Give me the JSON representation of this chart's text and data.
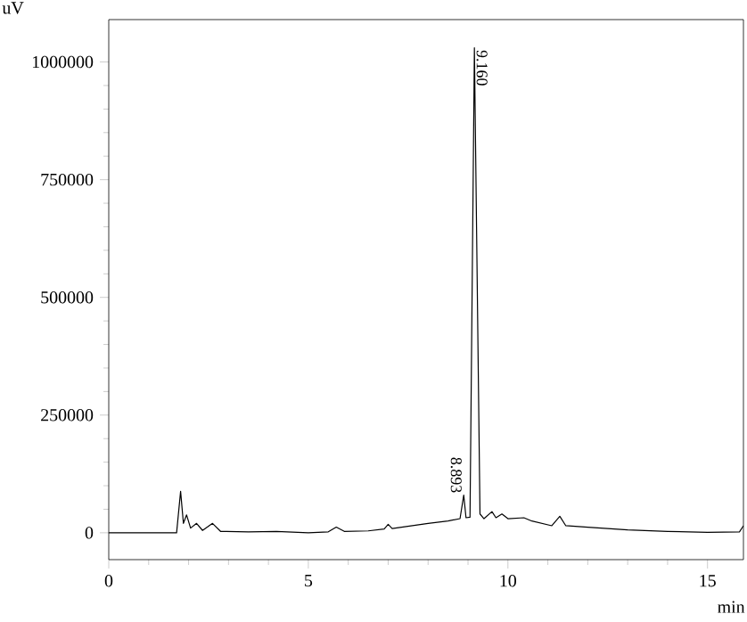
{
  "chart_data": {
    "type": "line",
    "xlabel": "min",
    "ylabel": "uV",
    "x": [
      0,
      1.7,
      1.8,
      1.87,
      1.95,
      2.05,
      2.2,
      2.35,
      2.6,
      2.8,
      3.5,
      4.2,
      5.0,
      5.5,
      5.7,
      5.9,
      6.5,
      6.9,
      7.0,
      7.1,
      8.0,
      8.5,
      8.8,
      8.893,
      8.95,
      9.05,
      9.16,
      9.3,
      9.4,
      9.6,
      9.7,
      9.85,
      10.0,
      10.4,
      10.6,
      11.1,
      11.3,
      11.45,
      12,
      13,
      14,
      15,
      15.8,
      15.9
    ],
    "series": [
      {
        "color": "#000000",
        "values": [
          0,
          0,
          88000,
          20000,
          38000,
          10000,
          20000,
          5000,
          20000,
          3000,
          2000,
          3000,
          0,
          2000,
          12000,
          3000,
          4000,
          8000,
          18000,
          9000,
          20000,
          25000,
          30000,
          80000,
          32000,
          33000,
          1030000,
          40000,
          30000,
          45000,
          32000,
          40000,
          30000,
          32000,
          25000,
          15000,
          35000,
          15000,
          12000,
          6000,
          3000,
          1000,
          2000,
          15000
        ]
      }
    ],
    "xlim": [
      0,
      15.9
    ],
    "ylim": [
      -57000,
      1090000
    ],
    "xticks": [
      0,
      5,
      10,
      15
    ],
    "yticks": [
      0,
      250000,
      500000,
      750000,
      1000000
    ],
    "annotations": [
      {
        "text": "9.160",
        "x": 9.16,
        "y": 1030000
      },
      {
        "text": "8.893",
        "x": 8.893,
        "y": 80000
      }
    ],
    "grid": false,
    "marker": "none",
    "line_style": "solid"
  }
}
